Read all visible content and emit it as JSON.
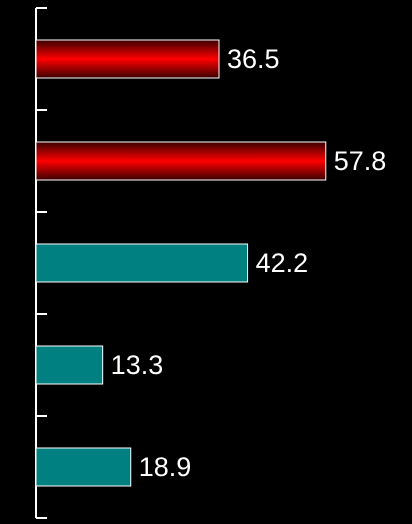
{
  "chart_data": {
    "type": "hbar",
    "categories": [
      null,
      null,
      null,
      null,
      null
    ],
    "values": [
      36.5,
      57.8,
      42.2,
      13.3,
      18.9
    ],
    "colors": [
      "#ff0000",
      "#ff0000",
      "#008080",
      "#008080",
      "#008080"
    ],
    "xlim": [
      0,
      75
    ]
  }
}
